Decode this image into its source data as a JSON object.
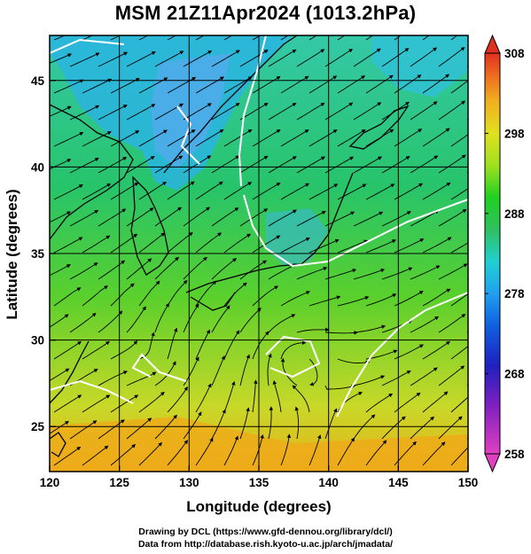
{
  "title": "MSM 21Z11Apr2024 (1013.2hPa)",
  "axes": {
    "xlabel": "Longitude (degrees)",
    "ylabel": "Latitude  (degrees)",
    "xticks": [
      "120",
      "125",
      "130",
      "135",
      "140",
      "145",
      "150"
    ],
    "yticks": [
      "25",
      "30",
      "35",
      "40",
      "45"
    ],
    "xrange": [
      120,
      150
    ],
    "yrange": [
      22.4,
      47.6
    ]
  },
  "colorbar": {
    "ticks": [
      "308",
      "298",
      "288",
      "278",
      "268",
      "258"
    ],
    "min": 258,
    "max": 308,
    "colors": [
      "#e040c0",
      "#8020c0",
      "#2020c0",
      "#1060e0",
      "#20a0f0",
      "#20d0d0",
      "#30c060",
      "#20d020",
      "#a0e020",
      "#e0e020",
      "#f0b020",
      "#f07020",
      "#e03020"
    ]
  },
  "credits": {
    "line1": "Drawing by DCL (https://www.gfd-dennou.org/library/dcl/)",
    "line2": "Data from http://database.rish.kyoto-u.ac.jp/arch/jmadata/"
  }
}
